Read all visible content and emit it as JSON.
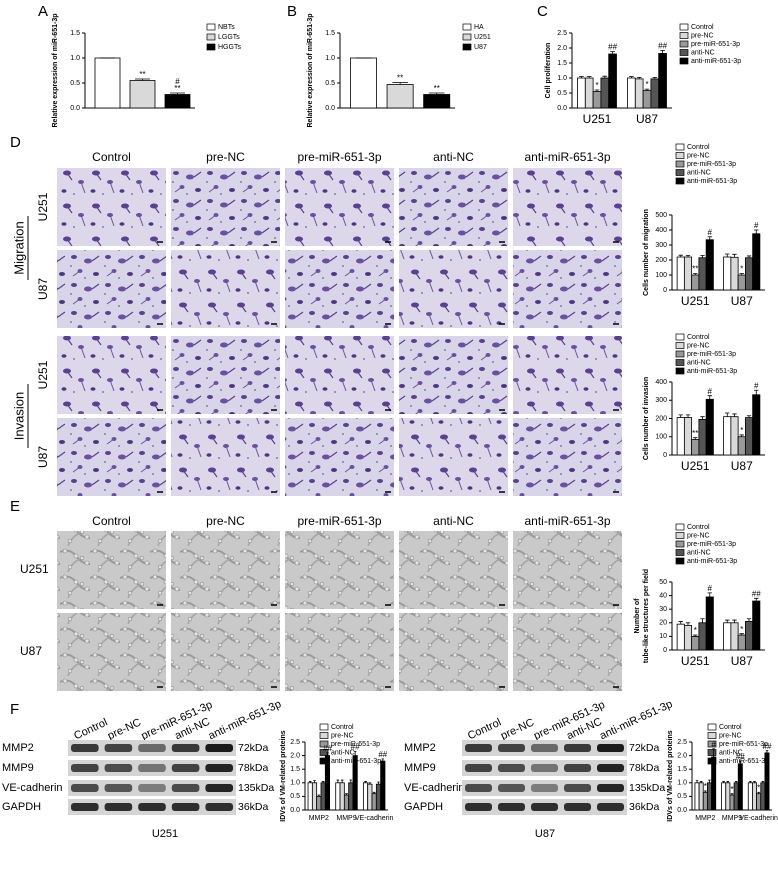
{
  "panel_labels": [
    "A",
    "B",
    "C",
    "D",
    "E",
    "F"
  ],
  "chart_data": [
    {
      "type": "bar",
      "ylabel": "Relative expression of miR-651-3p",
      "ylim": [
        0,
        1.5
      ],
      "yticks": [
        {
          "value": 0,
          "label": "0.0"
        },
        {
          "value": 0.5,
          "label": "0.5"
        },
        {
          "value": 1,
          "label": "1.0"
        },
        {
          "value": 1.5,
          "label": "1.5"
        }
      ],
      "series": [
        {
          "name": "NBTs",
          "color": "#ffffff",
          "values": [
            1.0
          ],
          "errors": [
            0.0
          ],
          "annotations": [
            null
          ]
        },
        {
          "name": "LGGTs",
          "color": "#d9d9d9",
          "values": [
            0.55
          ],
          "errors": [
            0.03
          ],
          "annotations": [
            [
              "**"
            ]
          ]
        },
        {
          "name": "HGGTs",
          "color": "#000000",
          "values": [
            0.27
          ],
          "errors": [
            0.03
          ],
          "annotations": [
            [
              "#",
              "**"
            ]
          ]
        }
      ]
    },
    {
      "type": "bar",
      "ylabel": "Relative expression of miR-651-3p",
      "ylim": [
        0,
        1.5
      ],
      "yticks": [
        {
          "value": 0,
          "label": "0.0"
        },
        {
          "value": 0.5,
          "label": "0.5"
        },
        {
          "value": 1,
          "label": "1.0"
        },
        {
          "value": 1.5,
          "label": "1.5"
        }
      ],
      "series": [
        {
          "name": "HA",
          "color": "#ffffff",
          "values": [
            1.0
          ],
          "errors": [
            0.0
          ],
          "annotations": [
            null
          ]
        },
        {
          "name": "U251",
          "color": "#d9d9d9",
          "values": [
            0.47
          ],
          "errors": [
            0.04
          ],
          "annotations": [
            [
              "**"
            ]
          ]
        },
        {
          "name": "U87",
          "color": "#000000",
          "values": [
            0.27
          ],
          "errors": [
            0.03
          ],
          "annotations": [
            [
              "**"
            ]
          ]
        }
      ]
    },
    {
      "type": "bar",
      "ylabel": "Cell proliferation",
      "categories": [
        "U251",
        "U87"
      ],
      "ylim": [
        0,
        2.5
      ],
      "yticks": [
        {
          "value": 0,
          "label": "0.0"
        },
        {
          "value": 0.5,
          "label": "0.5"
        },
        {
          "value": 1,
          "label": "1.0"
        },
        {
          "value": 1.5,
          "label": "1.5"
        },
        {
          "value": 2,
          "label": "2.0"
        },
        {
          "value": 2.5,
          "label": "2.5"
        }
      ],
      "series": [
        {
          "name": "Control",
          "color": "#ffffff",
          "values": [
            1.0,
            1.0
          ],
          "errors": [
            0.05,
            0.05
          ],
          "annotations": [
            null,
            null
          ]
        },
        {
          "name": "pre-NC",
          "color": "#d9d9d9",
          "values": [
            1.0,
            0.97
          ],
          "errors": [
            0.05,
            0.05
          ],
          "annotations": [
            null,
            null
          ]
        },
        {
          "name": "pre-miR-651-3p",
          "color": "#999999",
          "values": [
            0.55,
            0.58
          ],
          "errors": [
            0.05,
            0.05
          ],
          "annotations": [
            [
              "*"
            ],
            [
              "*"
            ]
          ]
        },
        {
          "name": "anti-NC",
          "color": "#555555",
          "values": [
            1.0,
            0.97
          ],
          "errors": [
            0.06,
            0.05
          ],
          "annotations": [
            null,
            null
          ]
        },
        {
          "name": "anti-miR-651-3p",
          "color": "#000000",
          "values": [
            1.8,
            1.82
          ],
          "errors": [
            0.08,
            0.1
          ],
          "annotations": [
            [
              "##"
            ],
            [
              "##"
            ]
          ]
        }
      ]
    },
    {
      "type": "bar",
      "ylabel": "Cells number of migration",
      "categories": [
        "U251",
        "U87"
      ],
      "ylim": [
        0,
        500
      ],
      "yticks": [
        0,
        100,
        200,
        300,
        400,
        500
      ],
      "series": [
        {
          "name": "Control",
          "color": "#ffffff",
          "values": [
            220,
            220
          ],
          "errors": [
            12,
            20
          ],
          "annotations": [
            null,
            null
          ]
        },
        {
          "name": "pre-NC",
          "color": "#d9d9d9",
          "values": [
            220,
            218
          ],
          "errors": [
            10,
            20
          ],
          "annotations": [
            null,
            null
          ]
        },
        {
          "name": "pre-miR-651-3p",
          "color": "#999999",
          "values": [
            100,
            100
          ],
          "errors": [
            10,
            10
          ],
          "annotations": [
            [
              "**"
            ],
            [
              "*"
            ]
          ]
        },
        {
          "name": "anti-NC",
          "color": "#555555",
          "values": [
            215,
            215
          ],
          "errors": [
            15,
            12
          ],
          "annotations": [
            null,
            null
          ]
        },
        {
          "name": "anti-miR-651-3p",
          "color": "#000000",
          "values": [
            335,
            375
          ],
          "errors": [
            20,
            25
          ],
          "annotations": [
            [
              "#"
            ],
            [
              "#"
            ]
          ]
        }
      ]
    },
    {
      "type": "bar",
      "ylabel": "Cells number of invasion",
      "categories": [
        "U251",
        "U87"
      ],
      "ylim": [
        0,
        400
      ],
      "yticks": [
        0,
        100,
        200,
        300,
        400
      ],
      "series": [
        {
          "name": "Control",
          "color": "#ffffff",
          "values": [
            205,
            210
          ],
          "errors": [
            15,
            20
          ],
          "annotations": [
            null,
            null
          ]
        },
        {
          "name": "pre-NC",
          "color": "#d9d9d9",
          "values": [
            205,
            210
          ],
          "errors": [
            15,
            15
          ],
          "annotations": [
            null,
            null
          ]
        },
        {
          "name": "pre-miR-651-3p",
          "color": "#999999",
          "values": [
            85,
            100
          ],
          "errors": [
            10,
            10
          ],
          "annotations": [
            [
              "**"
            ],
            [
              "*"
            ]
          ]
        },
        {
          "name": "anti-NC",
          "color": "#555555",
          "values": [
            195,
            205
          ],
          "errors": [
            15,
            10
          ],
          "annotations": [
            null,
            null
          ]
        },
        {
          "name": "anti-miR-651-3p",
          "color": "#000000",
          "values": [
            305,
            330
          ],
          "errors": [
            20,
            25
          ],
          "annotations": [
            [
              "#"
            ],
            [
              "#"
            ]
          ]
        }
      ]
    },
    {
      "type": "bar",
      "ylabel": [
        "Number of",
        "tube-like structures per field"
      ],
      "categories": [
        "U251",
        "U87"
      ],
      "ylim": [
        0,
        50
      ],
      "yticks": [
        0,
        10,
        20,
        30,
        40,
        50
      ],
      "series": [
        {
          "name": "Control",
          "color": "#ffffff",
          "values": [
            19,
            20
          ],
          "errors": [
            2,
            2
          ],
          "annotations": [
            null,
            null
          ]
        },
        {
          "name": "pre-NC",
          "color": "#d9d9d9",
          "values": [
            18,
            20
          ],
          "errors": [
            2,
            2
          ],
          "annotations": [
            null,
            null
          ]
        },
        {
          "name": "pre-miR-651-3p",
          "color": "#999999",
          "values": [
            10,
            11
          ],
          "errors": [
            1,
            1
          ],
          "annotations": [
            [
              "*"
            ],
            [
              "*"
            ]
          ]
        },
        {
          "name": "anti-NC",
          "color": "#555555",
          "values": [
            20,
            21
          ],
          "errors": [
            3,
            2
          ],
          "annotations": [
            null,
            null
          ]
        },
        {
          "name": "anti-miR-651-3p",
          "color": "#000000",
          "values": [
            39,
            36
          ],
          "errors": [
            3,
            2
          ],
          "annotations": [
            [
              "#"
            ],
            [
              "##"
            ]
          ]
        }
      ]
    },
    {
      "type": "bar",
      "ylabel": "IDVs of VM-related proteins",
      "categories": [
        "MMP2",
        "MMP9",
        "VE-cadherin"
      ],
      "ylim": [
        0,
        2.5
      ],
      "yticks": [
        {
          "value": 0,
          "label": "0.0"
        },
        {
          "value": 0.5,
          "label": "0.5"
        },
        {
          "value": 1,
          "label": "1.0"
        },
        {
          "value": 1.5,
          "label": "1.5"
        },
        {
          "value": 2,
          "label": "2.0"
        },
        {
          "value": 2.5,
          "label": "2.5"
        }
      ],
      "series": [
        {
          "name": "Control",
          "color": "#ffffff",
          "values": [
            1.0,
            1.0,
            1.0
          ],
          "errors": [
            0.05,
            0.1,
            0.05
          ],
          "annotations": [
            null,
            null,
            null
          ]
        },
        {
          "name": "pre-NC",
          "color": "#d9d9d9",
          "values": [
            1.0,
            1.0,
            0.95
          ],
          "errors": [
            0.08,
            0.1,
            0.05
          ],
          "annotations": [
            null,
            null,
            null
          ]
        },
        {
          "name": "pre-miR-651-3p",
          "color": "#999999",
          "values": [
            0.5,
            0.55,
            0.6
          ],
          "errors": [
            0.05,
            0.05,
            0.05
          ],
          "annotations": [
            null,
            null,
            null
          ]
        },
        {
          "name": "anti-NC",
          "color": "#555555",
          "values": [
            1.0,
            1.0,
            0.95
          ],
          "errors": [
            0.05,
            0.1,
            0.08
          ],
          "annotations": [
            null,
            null,
            null
          ]
        },
        {
          "name": "anti-miR-651-3p",
          "color": "#000000",
          "values": [
            2.0,
            2.0,
            1.8
          ],
          "errors": [
            0.1,
            0.15,
            0.08
          ],
          "annotations": [
            [
              "##"
            ],
            [
              "##"
            ],
            [
              "##"
            ]
          ]
        }
      ]
    },
    {
      "type": "bar",
      "ylabel": "IDVs of VM-related proteins",
      "categories": [
        "MMP2",
        "MMP9",
        "VE-cadherin"
      ],
      "ylim": [
        0,
        2.5
      ],
      "yticks": [
        {
          "value": 0,
          "label": "0.0"
        },
        {
          "value": 0.5,
          "label": "0.5"
        },
        {
          "value": 1,
          "label": "1.0"
        },
        {
          "value": 1.5,
          "label": "1.5"
        },
        {
          "value": 2,
          "label": "2.0"
        },
        {
          "value": 2.5,
          "label": "2.5"
        }
      ],
      "series": [
        {
          "name": "Control",
          "color": "#ffffff",
          "values": [
            1.0,
            1.0,
            1.0
          ],
          "errors": [
            0.08,
            0.05,
            0.05
          ],
          "annotations": [
            null,
            null,
            null
          ]
        },
        {
          "name": "pre-NC",
          "color": "#d9d9d9",
          "values": [
            1.0,
            1.0,
            1.0
          ],
          "errors": [
            0.05,
            0.05,
            0.05
          ],
          "annotations": [
            null,
            null,
            null
          ]
        },
        {
          "name": "pre-miR-651-3p",
          "color": "#999999",
          "values": [
            0.65,
            0.55,
            0.6
          ],
          "errors": [
            0.05,
            0.05,
            0.05
          ],
          "annotations": [
            [
              "*"
            ],
            [
              "*"
            ],
            [
              "*"
            ]
          ]
        },
        {
          "name": "anti-NC",
          "color": "#555555",
          "values": [
            1.0,
            1.0,
            1.0
          ],
          "errors": [
            0.1,
            0.05,
            0.05
          ],
          "annotations": [
            null,
            null,
            null
          ]
        },
        {
          "name": "anti-miR-651-3p",
          "color": "#000000",
          "values": [
            1.95,
            1.7,
            2.1
          ],
          "errors": [
            0.3,
            0.1,
            0.08
          ],
          "annotations": [
            [
              "#"
            ],
            [
              "##"
            ],
            [
              "##"
            ]
          ]
        }
      ]
    }
  ],
  "panel_D": {
    "columns": [
      "Control",
      "pre-NC",
      "pre-miR-651-3p",
      "anti-NC",
      "anti-miR-651-3p"
    ],
    "rows": [
      "U251",
      "U87",
      "U251",
      "U87"
    ],
    "groups": [
      "Migration",
      "Invasion"
    ]
  },
  "panel_E": {
    "columns": [
      "Control",
      "pre-NC",
      "pre-miR-651-3p",
      "anti-NC",
      "anti-miR-651-3p"
    ],
    "rows": [
      "U251",
      "U87"
    ]
  },
  "panel_F": {
    "blots": [
      {
        "lanes": [
          "Control",
          "pre-NC",
          "pre-miR-651-3p",
          "anti-NC",
          "anti-miR-651-3p"
        ],
        "proteins": [
          "MMP2",
          "MMP9",
          "VE-cadherin",
          "GAPDH"
        ],
        "sizes": [
          "72kDa",
          "78kDa",
          "135kDa",
          "36kDa"
        ],
        "cell_line": "U251"
      },
      {
        "lanes": [
          "Control",
          "pre-NC",
          "pre-miR-651-3p",
          "anti-NC",
          "anti-miR-651-3p"
        ],
        "proteins": [
          "MMP2",
          "MMP9",
          "VE-cadherin",
          "GAPDH"
        ],
        "sizes": [
          "72kDa",
          "78kDa",
          "135kDa",
          "36kDa"
        ],
        "cell_line": "U87"
      }
    ]
  }
}
